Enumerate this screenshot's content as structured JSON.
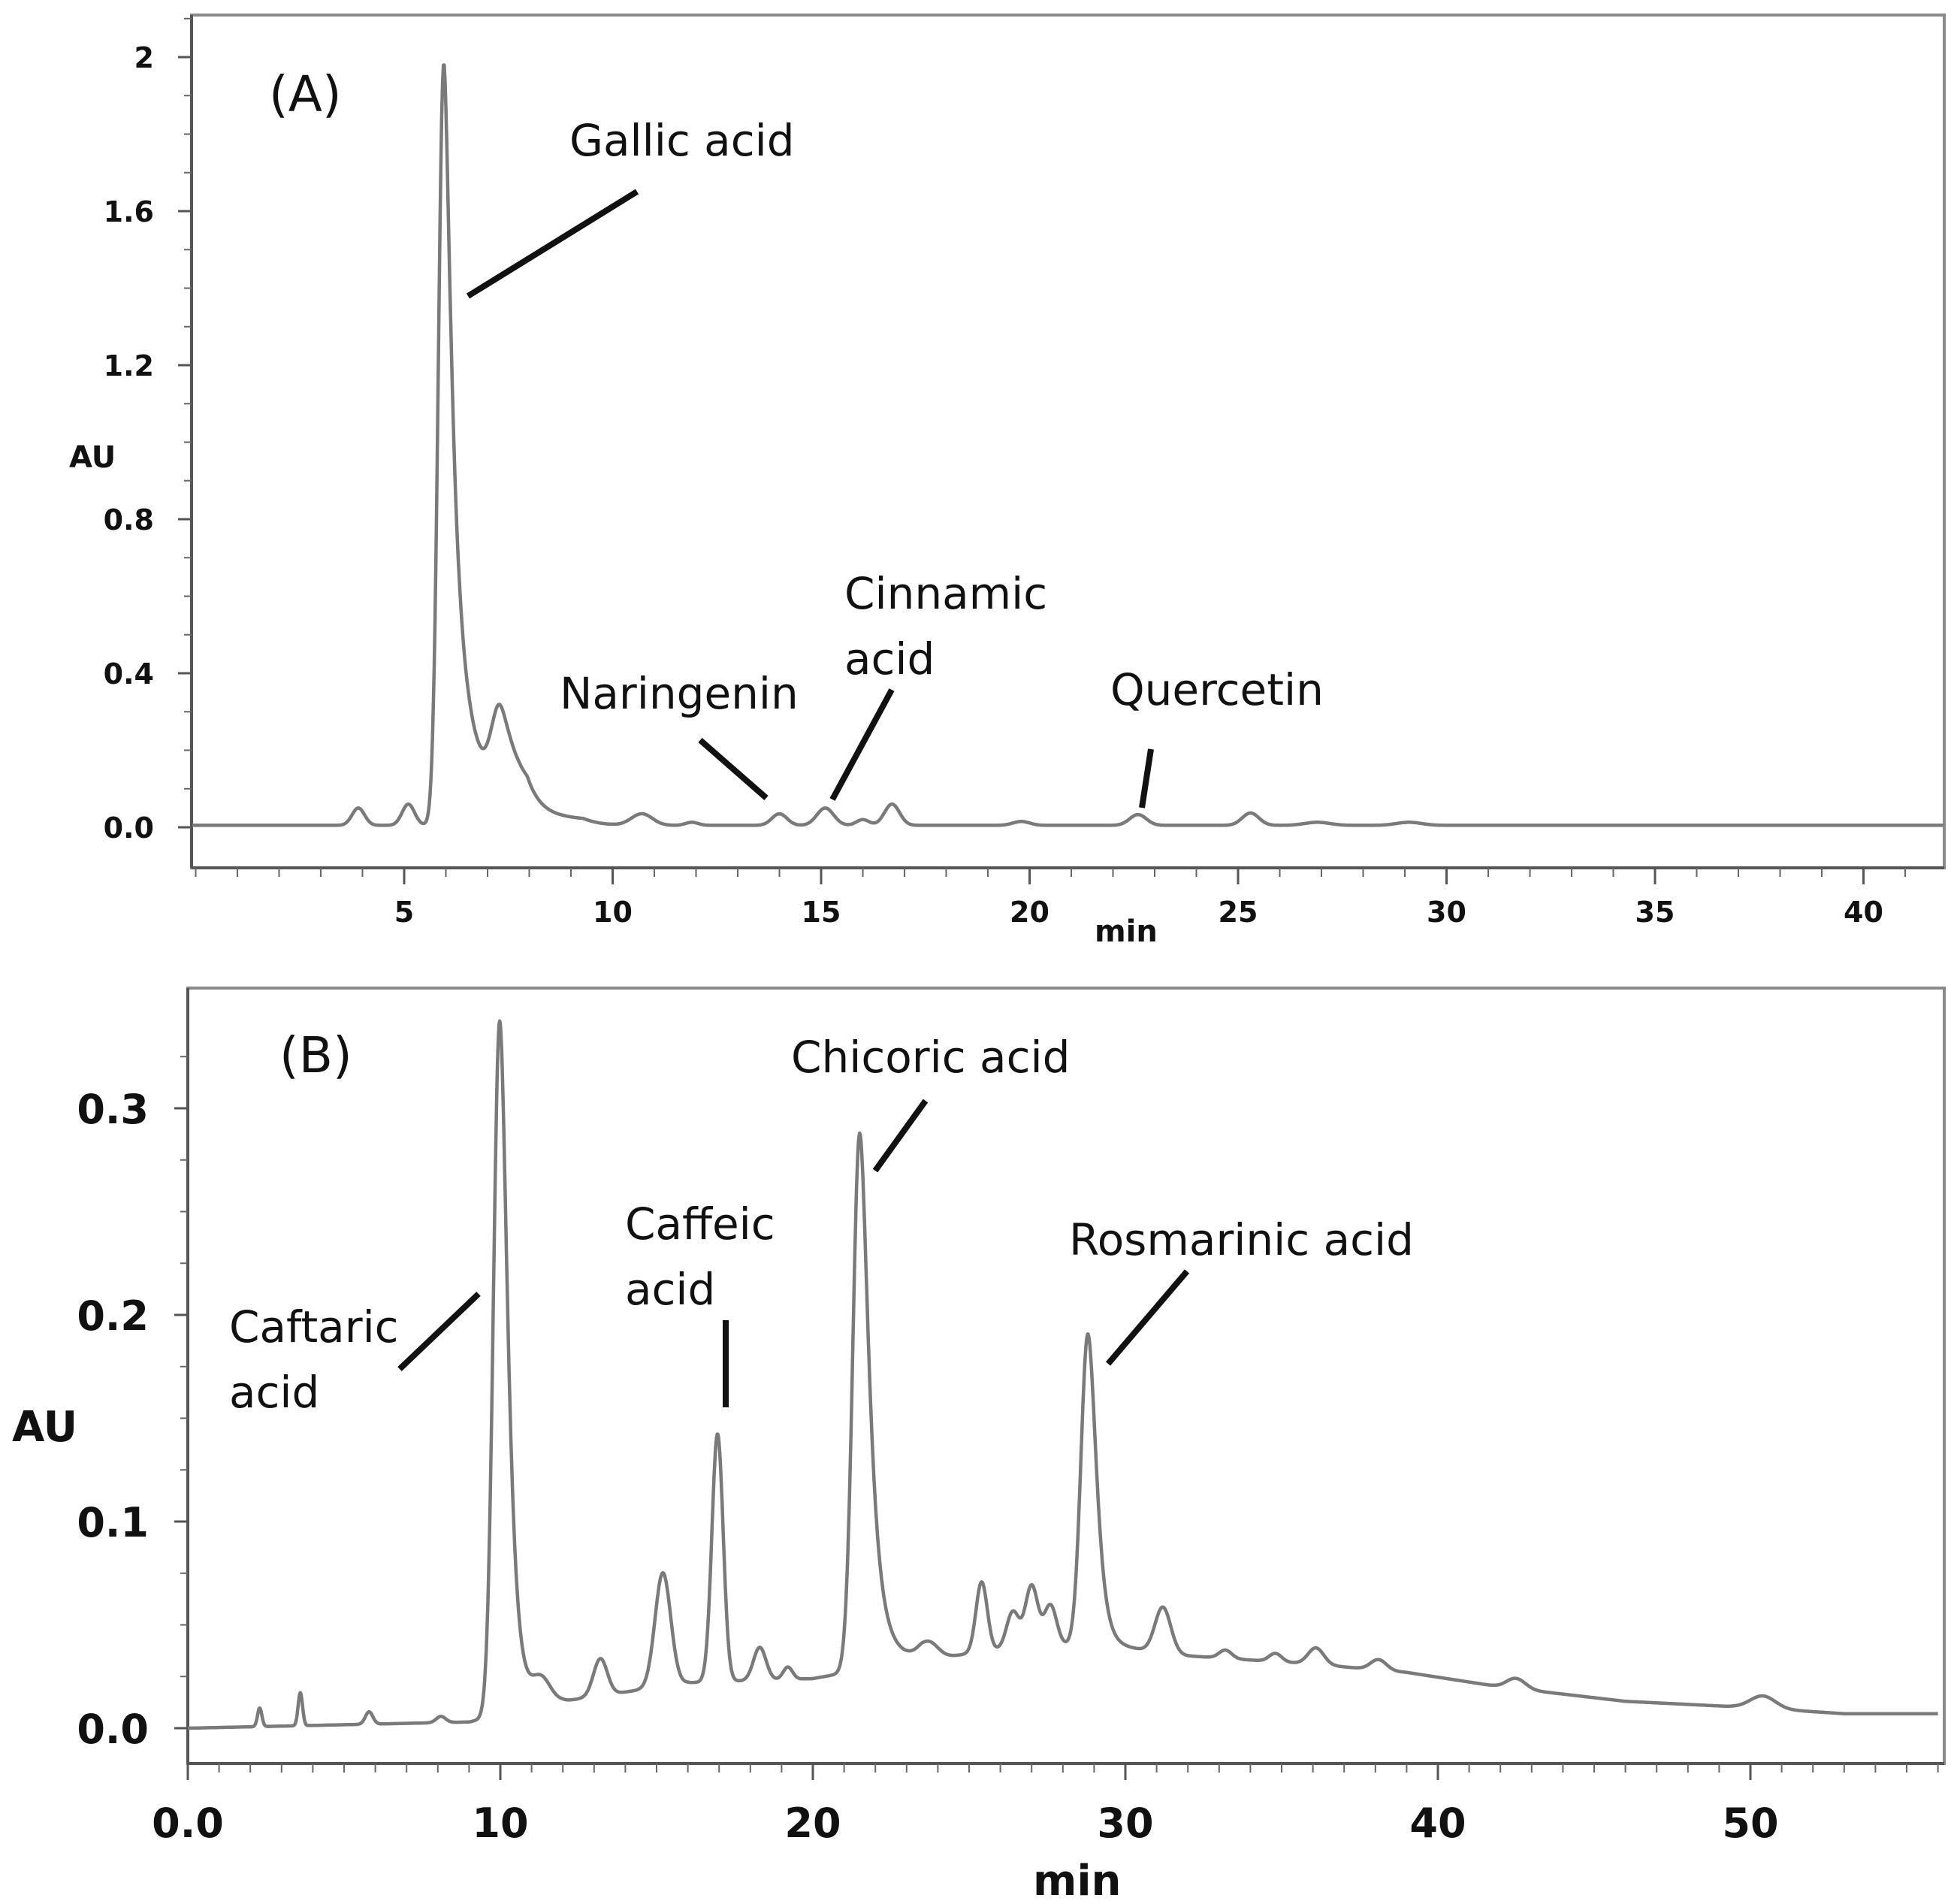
{
  "chart_data": [
    {
      "type": "line",
      "panel_label": "(A)",
      "xlabel": "min",
      "ylabel": "AU",
      "xlim": [
        -0.5,
        42
      ],
      "ylim": [
        -0.1,
        2.1
      ],
      "xticks": [
        5,
        10,
        15,
        20,
        25,
        30,
        35,
        40
      ],
      "xtick_labels": [
        "5",
        "10",
        "15",
        "20",
        "25",
        "30",
        "35",
        "40"
      ],
      "yticks": [
        0.0,
        0.4,
        0.8,
        1.2,
        1.6,
        2.0
      ],
      "ytick_labels": [
        "0.0",
        "0.4",
        "0.8",
        "1.2",
        "1.6",
        "2"
      ],
      "grid": false,
      "series": [
        {
          "name": "chromatogram",
          "baseline": 0.005,
          "peaks": [
            {
              "rt": 3.9,
              "height": 0.045,
              "width": 0.15
            },
            {
              "rt": 5.1,
              "height": 0.055,
              "width": 0.15
            },
            {
              "rt": 5.95,
              "height": 1.98,
              "width": 0.13,
              "tail": 0.9
            },
            {
              "rt": 7.3,
              "height": 0.21,
              "width": 0.2,
              "tail": 1.0
            },
            {
              "rt": 10.7,
              "height": 0.03,
              "width": 0.25
            },
            {
              "rt": 11.9,
              "height": 0.008,
              "width": 0.15
            },
            {
              "rt": 14.0,
              "height": 0.03,
              "width": 0.18
            },
            {
              "rt": 15.1,
              "height": 0.045,
              "width": 0.2
            },
            {
              "rt": 16.0,
              "height": 0.015,
              "width": 0.15
            },
            {
              "rt": 16.7,
              "height": 0.055,
              "width": 0.18
            },
            {
              "rt": 19.8,
              "height": 0.01,
              "width": 0.2
            },
            {
              "rt": 22.6,
              "height": 0.028,
              "width": 0.2
            },
            {
              "rt": 25.3,
              "height": 0.032,
              "width": 0.2
            },
            {
              "rt": 26.9,
              "height": 0.008,
              "width": 0.3
            },
            {
              "rt": 29.1,
              "height": 0.008,
              "width": 0.3
            }
          ]
        }
      ],
      "annotations": [
        {
          "text": [
            "Gallic acid"
          ],
          "rt": 6.2,
          "y": 1.39
        },
        {
          "text": [
            "Naringenin"
          ],
          "rt": 13.8,
          "y": 0.07
        },
        {
          "text": [
            "Cinnamic",
            "acid"
          ],
          "rt": 15.2,
          "y": 0.08
        },
        {
          "text": [
            "Quercetin"
          ],
          "rt": 22.7,
          "y": 0.05
        }
      ]
    },
    {
      "type": "line",
      "panel_label": "(B)",
      "xlabel": "min",
      "ylabel": "AU",
      "xlim": [
        0,
        56
      ],
      "ylim": [
        -0.018,
        0.345
      ],
      "xticks": [
        0,
        10,
        20,
        30,
        40,
        50
      ],
      "xtick_labels": [
        "0.0",
        "10",
        "20",
        "30",
        "40",
        "50"
      ],
      "yticks": [
        0.0,
        0.1,
        0.2,
        0.3
      ],
      "ytick_labels": [
        "0.0",
        "0.1",
        "0.2",
        "0.3"
      ],
      "grid": false,
      "series": [
        {
          "name": "chromatogram",
          "baseline": 0.0,
          "drift": [
            {
              "x": 0,
              "y": 0.0
            },
            {
              "x": 9,
              "y": 0.003
            },
            {
              "x": 12,
              "y": 0.013
            },
            {
              "x": 16,
              "y": 0.022
            },
            {
              "x": 20,
              "y": 0.024
            },
            {
              "x": 23,
              "y": 0.032
            },
            {
              "x": 26,
              "y": 0.038
            },
            {
              "x": 29,
              "y": 0.041
            },
            {
              "x": 32,
              "y": 0.035
            },
            {
              "x": 36,
              "y": 0.031
            },
            {
              "x": 39,
              "y": 0.027
            },
            {
              "x": 42,
              "y": 0.02
            },
            {
              "x": 46,
              "y": 0.013
            },
            {
              "x": 50,
              "y": 0.01
            },
            {
              "x": 53,
              "y": 0.007
            },
            {
              "x": 56,
              "y": 0.007
            }
          ],
          "peaks": [
            {
              "rt": 2.3,
              "height": 0.009,
              "width": 0.07
            },
            {
              "rt": 3.6,
              "height": 0.016,
              "width": 0.07
            },
            {
              "rt": 5.8,
              "height": 0.006,
              "width": 0.12
            },
            {
              "rt": 8.1,
              "height": 0.003,
              "width": 0.15
            },
            {
              "rt": 9.98,
              "height": 0.336,
              "width": 0.2,
              "tail": 0.5
            },
            {
              "rt": 11.3,
              "height": 0.012,
              "width": 0.3
            },
            {
              "rt": 13.2,
              "height": 0.018,
              "width": 0.22
            },
            {
              "rt": 15.2,
              "height": 0.055,
              "width": 0.25
            },
            {
              "rt": 16.95,
              "height": 0.12,
              "width": 0.18
            },
            {
              "rt": 18.3,
              "height": 0.016,
              "width": 0.2
            },
            {
              "rt": 19.2,
              "height": 0.006,
              "width": 0.15
            },
            {
              "rt": 21.5,
              "height": 0.26,
              "width": 0.22,
              "tail": 0.6
            },
            {
              "rt": 23.7,
              "height": 0.008,
              "width": 0.3
            },
            {
              "rt": 25.4,
              "height": 0.034,
              "width": 0.18
            },
            {
              "rt": 26.4,
              "height": 0.018,
              "width": 0.2
            },
            {
              "rt": 27.0,
              "height": 0.03,
              "width": 0.2
            },
            {
              "rt": 27.6,
              "height": 0.02,
              "width": 0.2
            },
            {
              "rt": 28.8,
              "height": 0.15,
              "width": 0.22,
              "tail": 0.4
            },
            {
              "rt": 31.2,
              "height": 0.022,
              "width": 0.25
            },
            {
              "rt": 33.2,
              "height": 0.004,
              "width": 0.2
            },
            {
              "rt": 34.8,
              "height": 0.004,
              "width": 0.2
            },
            {
              "rt": 36.1,
              "height": 0.008,
              "width": 0.25
            },
            {
              "rt": 38.1,
              "height": 0.005,
              "width": 0.25
            },
            {
              "rt": 42.5,
              "height": 0.005,
              "width": 0.3
            },
            {
              "rt": 50.4,
              "height": 0.006,
              "width": 0.4
            }
          ]
        }
      ],
      "annotations": [
        {
          "text": [
            "Caftaric",
            "acid"
          ],
          "rt": 9.3,
          "y": 0.21
        },
        {
          "text": [
            "Caffeic",
            "acid"
          ],
          "rt": 17.3,
          "y": 0.16
        },
        {
          "text": [
            "Chicoric acid"
          ],
          "rt": 22.2,
          "y": 0.27
        },
        {
          "text": [
            "Rosmarinic acid"
          ],
          "rt": 29.4,
          "y": 0.18
        }
      ]
    }
  ]
}
